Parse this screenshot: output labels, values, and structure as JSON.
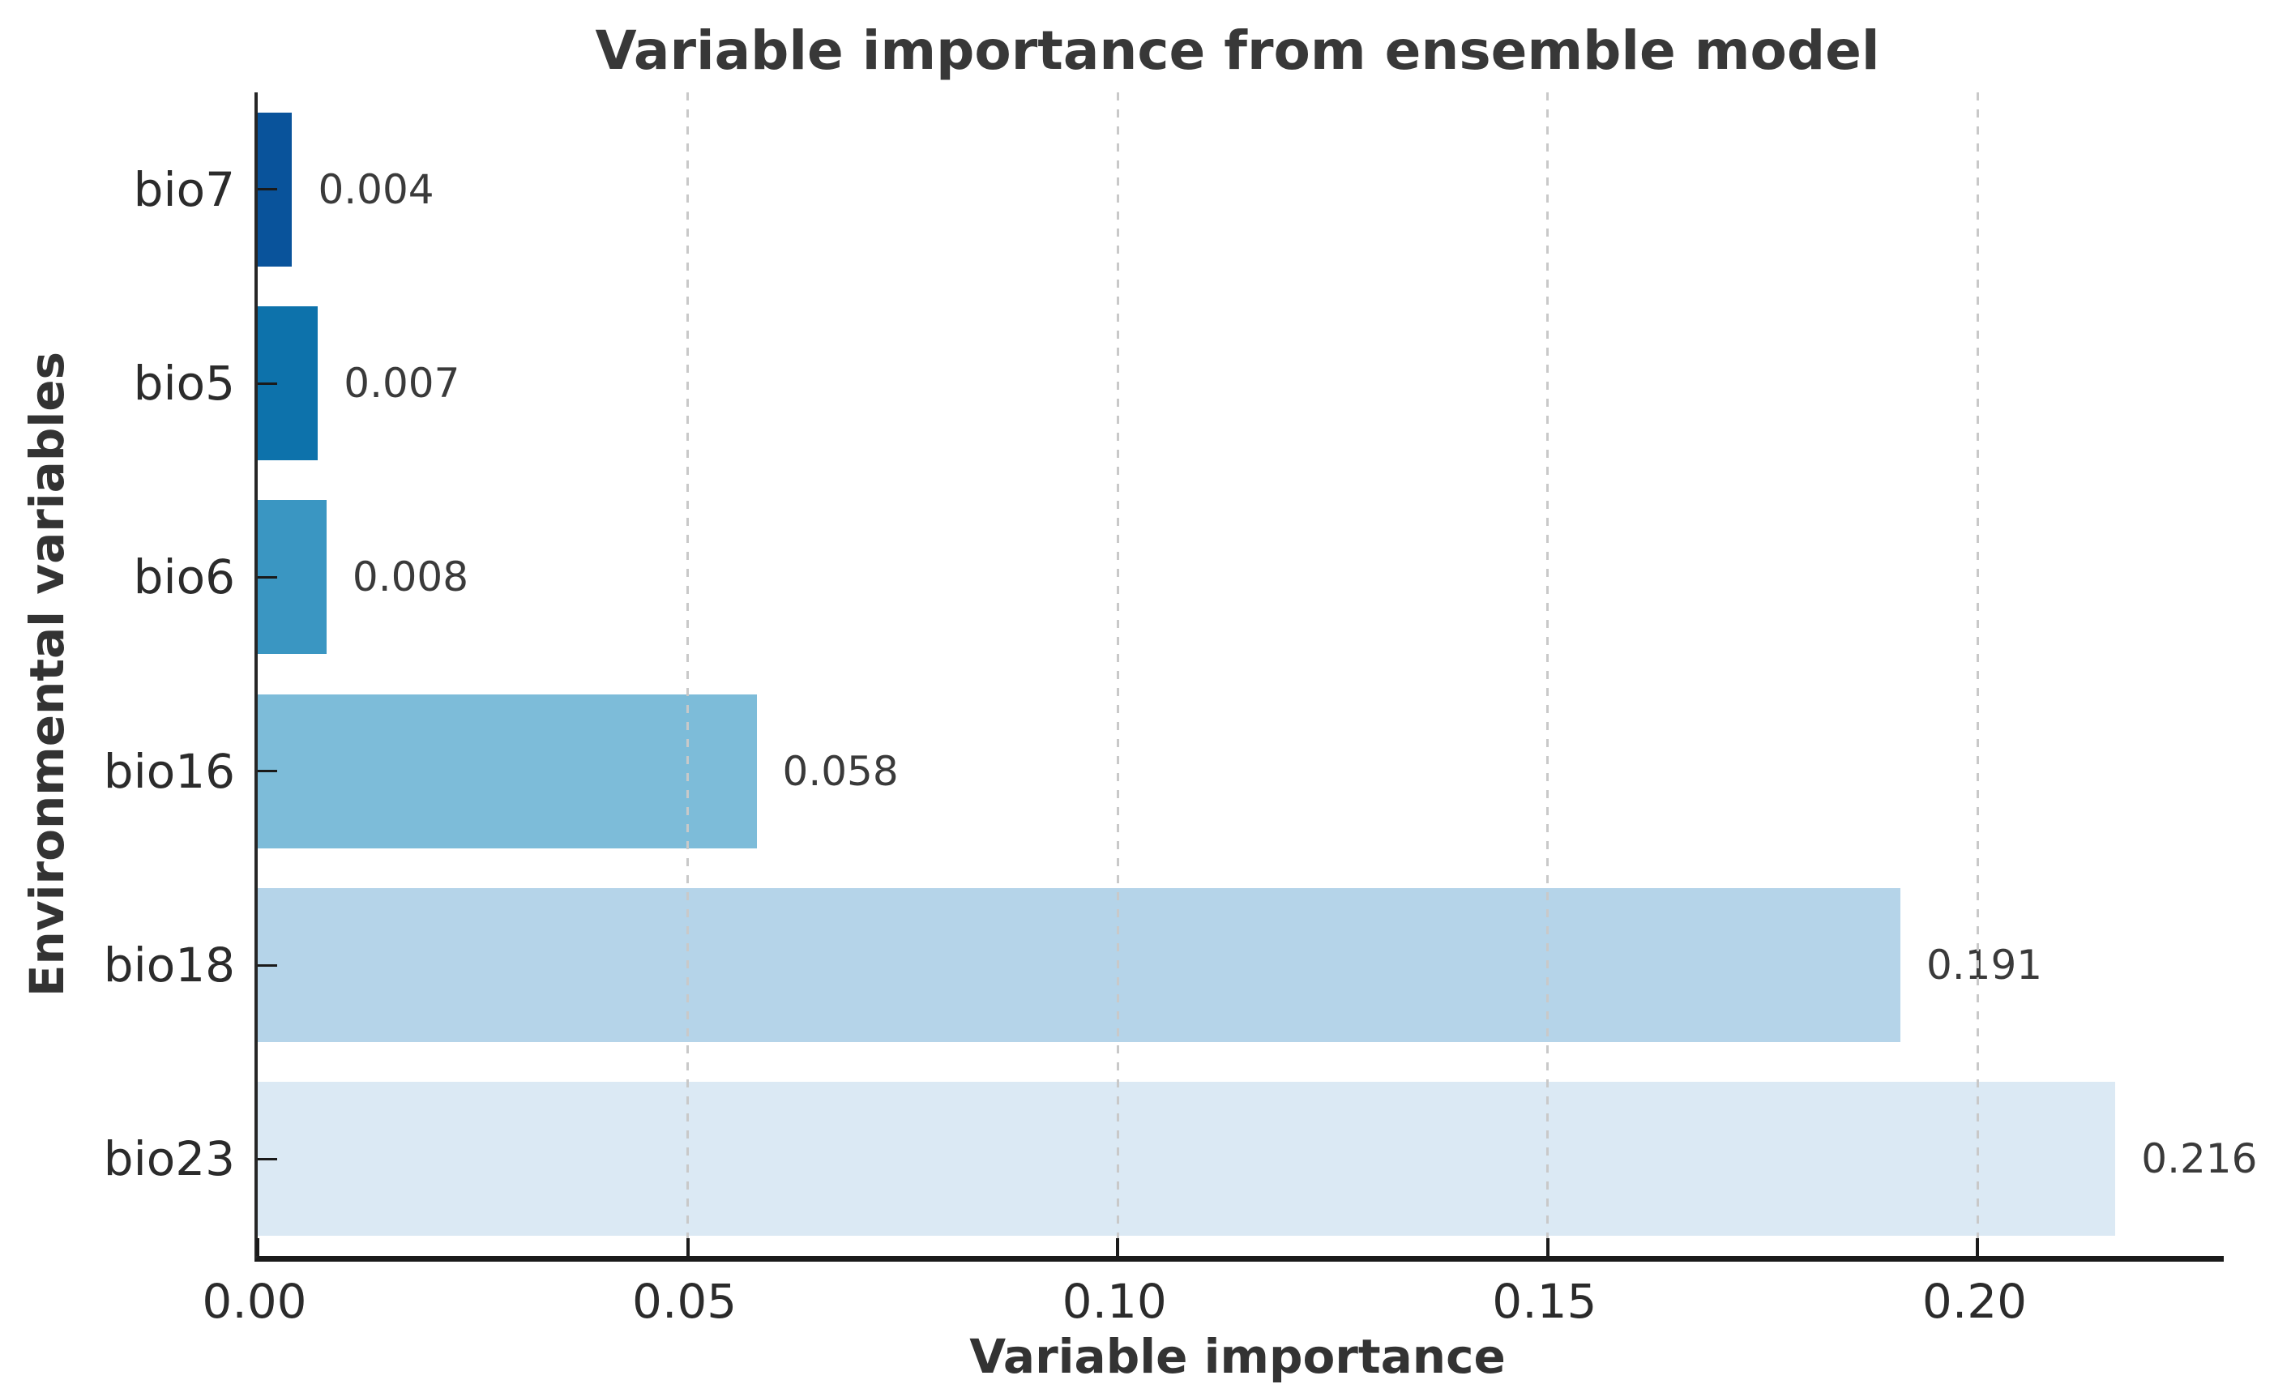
{
  "chart_data": {
    "type": "bar",
    "orientation": "horizontal",
    "title": "Variable importance from ensemble model",
    "xlabel": "Variable importance",
    "ylabel": "Environmental variables",
    "categories": [
      "bio7",
      "bio5",
      "bio6",
      "bio16",
      "bio18",
      "bio23"
    ],
    "values": [
      0.004,
      0.007,
      0.008,
      0.058,
      0.191,
      0.216
    ],
    "value_labels": [
      "0.004",
      "0.007",
      "0.008",
      "0.058",
      "0.191",
      "0.216"
    ],
    "bar_colors": [
      "#09539b",
      "#0d72ab",
      "#3a96c2",
      "#7dbcd9",
      "#b5d4e9",
      "#dbe9f4"
    ],
    "x_ticks": [
      0.0,
      0.05,
      0.1,
      0.15,
      0.2
    ],
    "x_tick_labels": [
      "0.00",
      "0.05",
      "0.10",
      "0.15",
      "0.20"
    ],
    "xlim": [
      0,
      0.2286
    ],
    "grid": "vertical-dashed",
    "legend": "none",
    "gridline_color": "#c9c9c9",
    "axis_color": "#1a1a1a",
    "title_color": "#383838",
    "label_text_color": "#3a3a3a"
  }
}
